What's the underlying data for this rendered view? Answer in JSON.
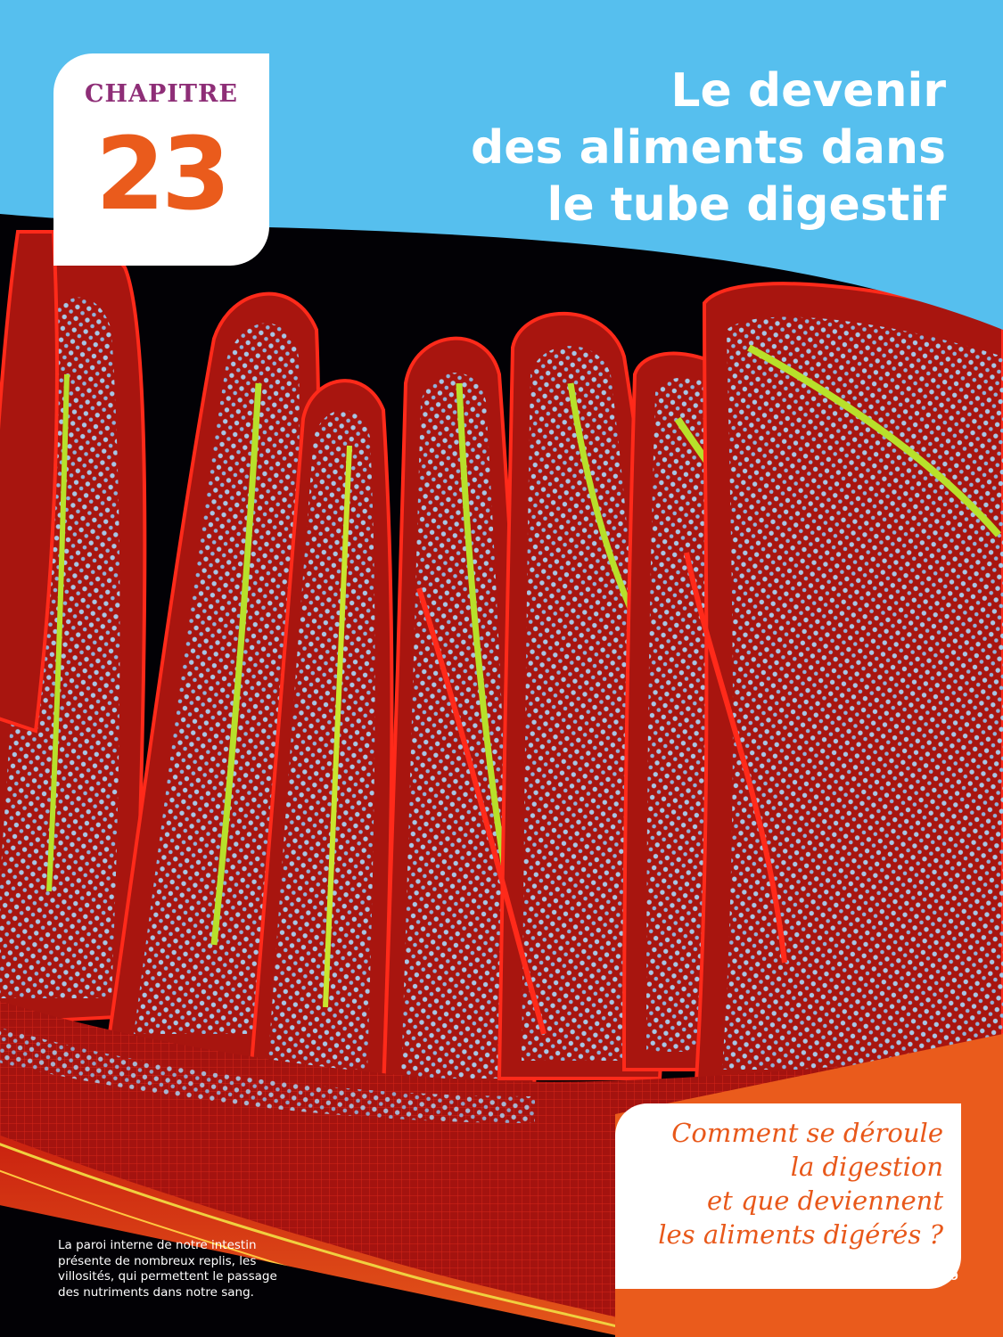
{
  "chapter": {
    "label": "CHAPITRE",
    "number": "23"
  },
  "title": {
    "lines": [
      "Le devenir",
      "des aliments dans",
      "le tube digestif"
    ]
  },
  "question": {
    "lines": [
      "Comment se déroule",
      "la digestion",
      "et que deviennent",
      "les aliments digérés ?"
    ]
  },
  "caption": {
    "lines": [
      "La paroi interne de notre intestin",
      "présente de nombreux replis, les",
      "villosités, qui permettent le passage",
      "des nutriments dans notre sang."
    ]
  },
  "page_number": "359",
  "colors": {
    "sky_blue": "#56bfee",
    "chapter_purple": "#8e2e77",
    "accent_orange": "#ea5b1c",
    "tissue_red": "#d81d12",
    "nuclei_blue": "#a6c7e6",
    "vessel_green": "#b8e02a"
  }
}
